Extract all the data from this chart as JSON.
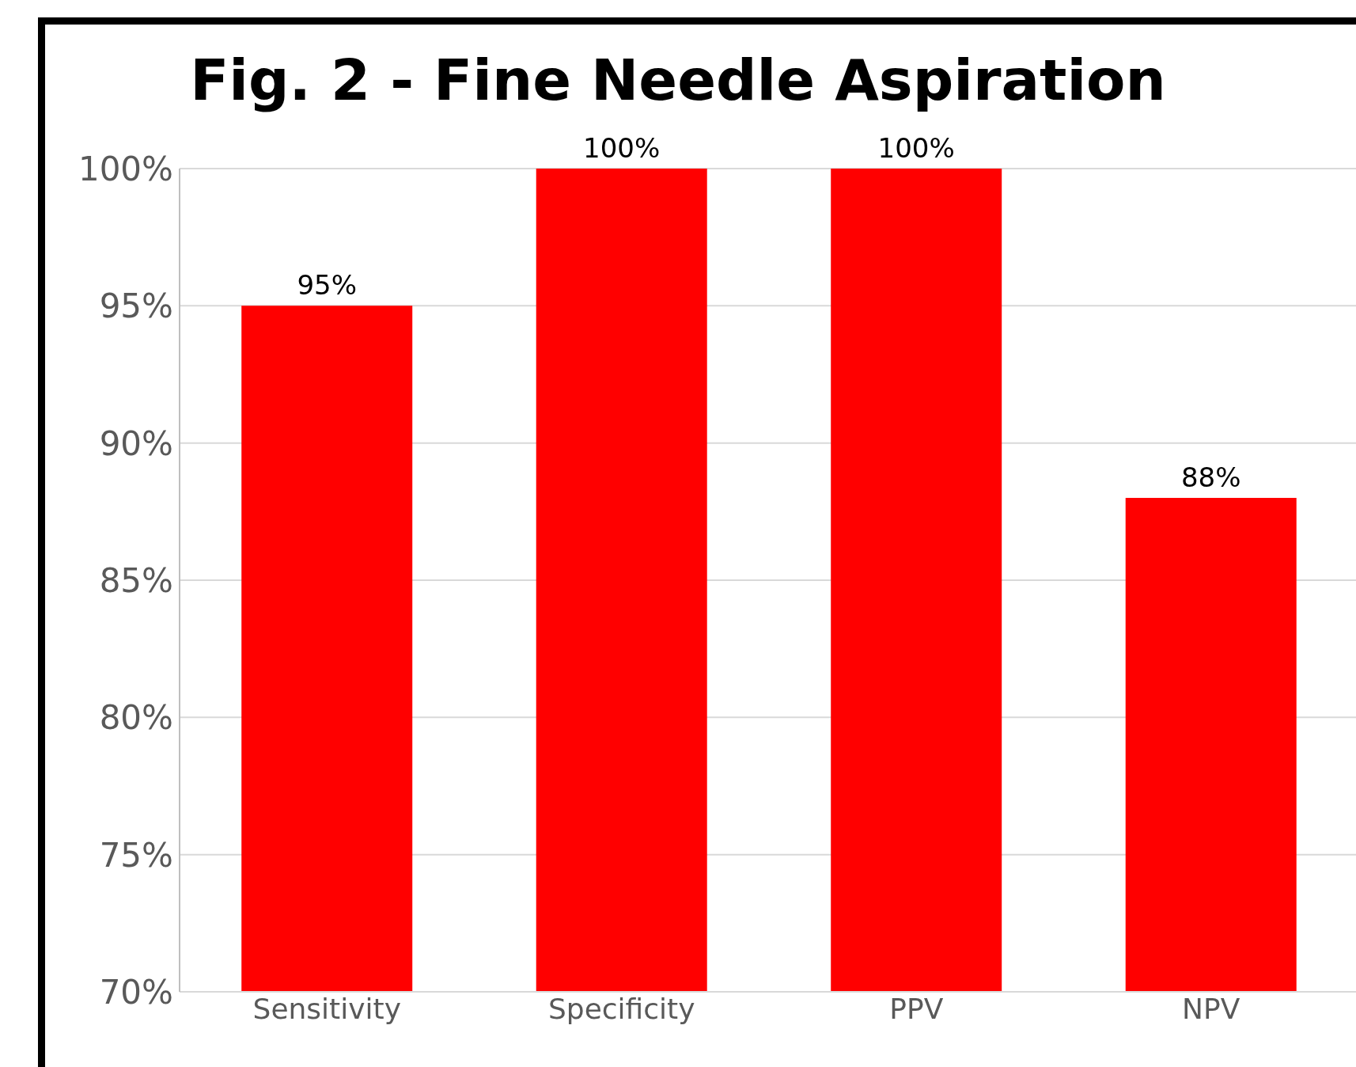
{
  "chart_data": {
    "type": "bar",
    "title": "Fig. 2 - Fine Needle Aspiration",
    "categories": [
      "Sensitivity",
      "Specificity",
      "PPV",
      "NPV"
    ],
    "values": [
      95,
      100,
      100,
      88
    ],
    "value_labels": [
      "95%",
      "100%",
      "100%",
      "88%"
    ],
    "color": "#ff0000",
    "ylim": [
      70,
      100
    ],
    "yticks": [
      {
        "value": 70,
        "label": "70%"
      },
      {
        "value": 75,
        "label": "75%"
      },
      {
        "value": 80,
        "label": "80%"
      },
      {
        "value": 85,
        "label": "85%"
      },
      {
        "value": 90,
        "label": "90%"
      },
      {
        "value": 95,
        "label": "95%"
      },
      {
        "value": 100,
        "label": "100%"
      }
    ],
    "grid": "y",
    "legend": false
  }
}
